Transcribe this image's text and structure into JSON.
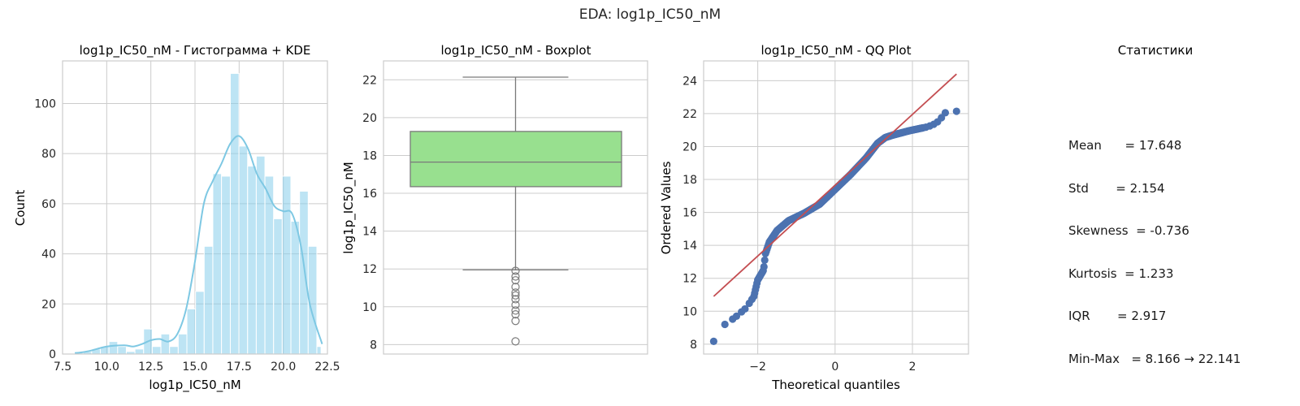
{
  "suptitle": "EDA: log1p_IC50_nM",
  "colors": {
    "hist_fill": "#87CEEB",
    "kde_line": "#7EC8E3",
    "box_fill": "#98E08F",
    "box_line": "#7a7a7a",
    "qq_points": "#4C72B0",
    "qq_line": "#C44E52",
    "grid": "#cccccc",
    "spine": "#cccccc"
  },
  "chart_data": [
    {
      "type": "bar",
      "subtype": "histogram+kde",
      "title": "log1p_IC50_nM - Гистограмма + KDE",
      "xlabel": "log1p_IC50_nM",
      "ylabel": "Count",
      "xlim": [
        7.5,
        22.5
      ],
      "ylim": [
        0,
        117
      ],
      "xticks": [
        7.5,
        10.0,
        12.5,
        15.0,
        17.5,
        20.0,
        22.5
      ],
      "xtick_labels": [
        "7.5",
        "10.0",
        "12.5",
        "15.0",
        "17.5",
        "20.0",
        "22.5"
      ],
      "yticks": [
        0,
        20,
        40,
        60,
        80,
        100
      ],
      "ytick_labels": [
        "0",
        "20",
        "40",
        "60",
        "80",
        "100"
      ],
      "bin_edges": [
        8.17,
        8.66,
        9.15,
        9.64,
        10.13,
        10.62,
        11.11,
        11.6,
        12.09,
        12.58,
        13.07,
        13.56,
        14.05,
        14.54,
        15.03,
        15.52,
        16.01,
        16.5,
        17.0,
        17.49,
        17.98,
        18.47,
        18.96,
        19.45,
        19.94,
        20.43,
        20.92,
        21.41,
        21.9,
        22.14
      ],
      "counts": [
        1,
        1,
        2,
        3,
        5,
        3,
        1,
        2,
        10,
        3,
        8,
        3,
        8,
        18,
        25,
        43,
        72,
        71,
        112,
        83,
        75,
        79,
        71,
        54,
        71,
        53,
        65,
        43,
        3
      ],
      "kde": {
        "x": [
          8.2,
          9.0,
          10.0,
          11.0,
          11.5,
          12.0,
          12.5,
          13.0,
          13.5,
          14.0,
          14.5,
          15.0,
          15.5,
          16.0,
          16.5,
          17.0,
          17.5,
          18.0,
          18.5,
          19.0,
          19.5,
          20.0,
          20.5,
          21.0,
          21.5,
          22.2
        ],
        "y": [
          0.3,
          1.2,
          3.0,
          3.5,
          3.0,
          4.0,
          5.5,
          6.0,
          5.0,
          8.0,
          18.0,
          37.0,
          60.0,
          69.0,
          76.0,
          84.0,
          87.0,
          82.0,
          72.0,
          66.0,
          59.0,
          57.0,
          56.0,
          43.0,
          20.0,
          4.0
        ]
      }
    },
    {
      "type": "box",
      "title": "log1p_IC50_nM - Boxplot",
      "ylabel": "log1p_IC50_nM",
      "ylim": [
        7.5,
        23.0
      ],
      "yticks": [
        8,
        10,
        12,
        14,
        16,
        18,
        20,
        22
      ],
      "ytick_labels": [
        "8",
        "10",
        "12",
        "14",
        "16",
        "18",
        "20",
        "22"
      ],
      "whisker_low": 11.95,
      "q1": 16.35,
      "median": 17.65,
      "q3": 19.27,
      "whisker_high": 22.14,
      "outliers": [
        11.9,
        11.6,
        11.4,
        11.05,
        10.75,
        10.6,
        10.4,
        10.1,
        9.8,
        9.6,
        9.25,
        8.17
      ]
    },
    {
      "type": "scatter",
      "subtype": "qq",
      "title": "log1p_IC50_nM - QQ Plot",
      "xlabel": "Theoretical quantiles",
      "ylabel": "Ordered Values",
      "xlim": [
        -3.4,
        3.45
      ],
      "ylim": [
        7.4,
        25.2
      ],
      "xticks": [
        -2,
        0,
        2
      ],
      "xtick_labels": [
        "−2",
        "0",
        "2"
      ],
      "yticks": [
        8,
        10,
        12,
        14,
        16,
        18,
        20,
        22,
        24
      ],
      "ytick_labels": [
        "8",
        "10",
        "12",
        "14",
        "16",
        "18",
        "20",
        "22",
        "24"
      ],
      "fit_line": {
        "x": [
          -3.14,
          3.14
        ],
        "y": [
          10.9,
          24.4
        ]
      },
      "curve_x": [
        -3.14,
        -2.85,
        -2.6,
        -2.3,
        -2.1,
        -2.0,
        -1.85,
        -1.8,
        -1.7,
        -1.5,
        -1.2,
        -0.8,
        -0.4,
        0.0,
        0.4,
        0.8,
        1.1,
        1.3,
        1.5,
        1.9,
        2.2,
        2.4,
        2.6,
        2.7,
        2.85,
        3.14
      ],
      "curve_y": [
        8.17,
        9.2,
        9.6,
        10.2,
        10.9,
        11.9,
        12.5,
        13.5,
        14.2,
        14.9,
        15.5,
        15.95,
        16.5,
        17.4,
        18.3,
        19.3,
        20.2,
        20.55,
        20.7,
        20.95,
        21.1,
        21.2,
        21.4,
        21.6,
        22.05,
        22.14
      ]
    }
  ],
  "stats_panel": {
    "title": "Статистики",
    "lines": [
      "Mean      = 17.648",
      "Std       = 2.154",
      "Skewness  = -0.736",
      "Kurtosis  = 1.233",
      "IQR       = 2.917",
      "Min-Max   = 8.166 → 22.141"
    ]
  }
}
